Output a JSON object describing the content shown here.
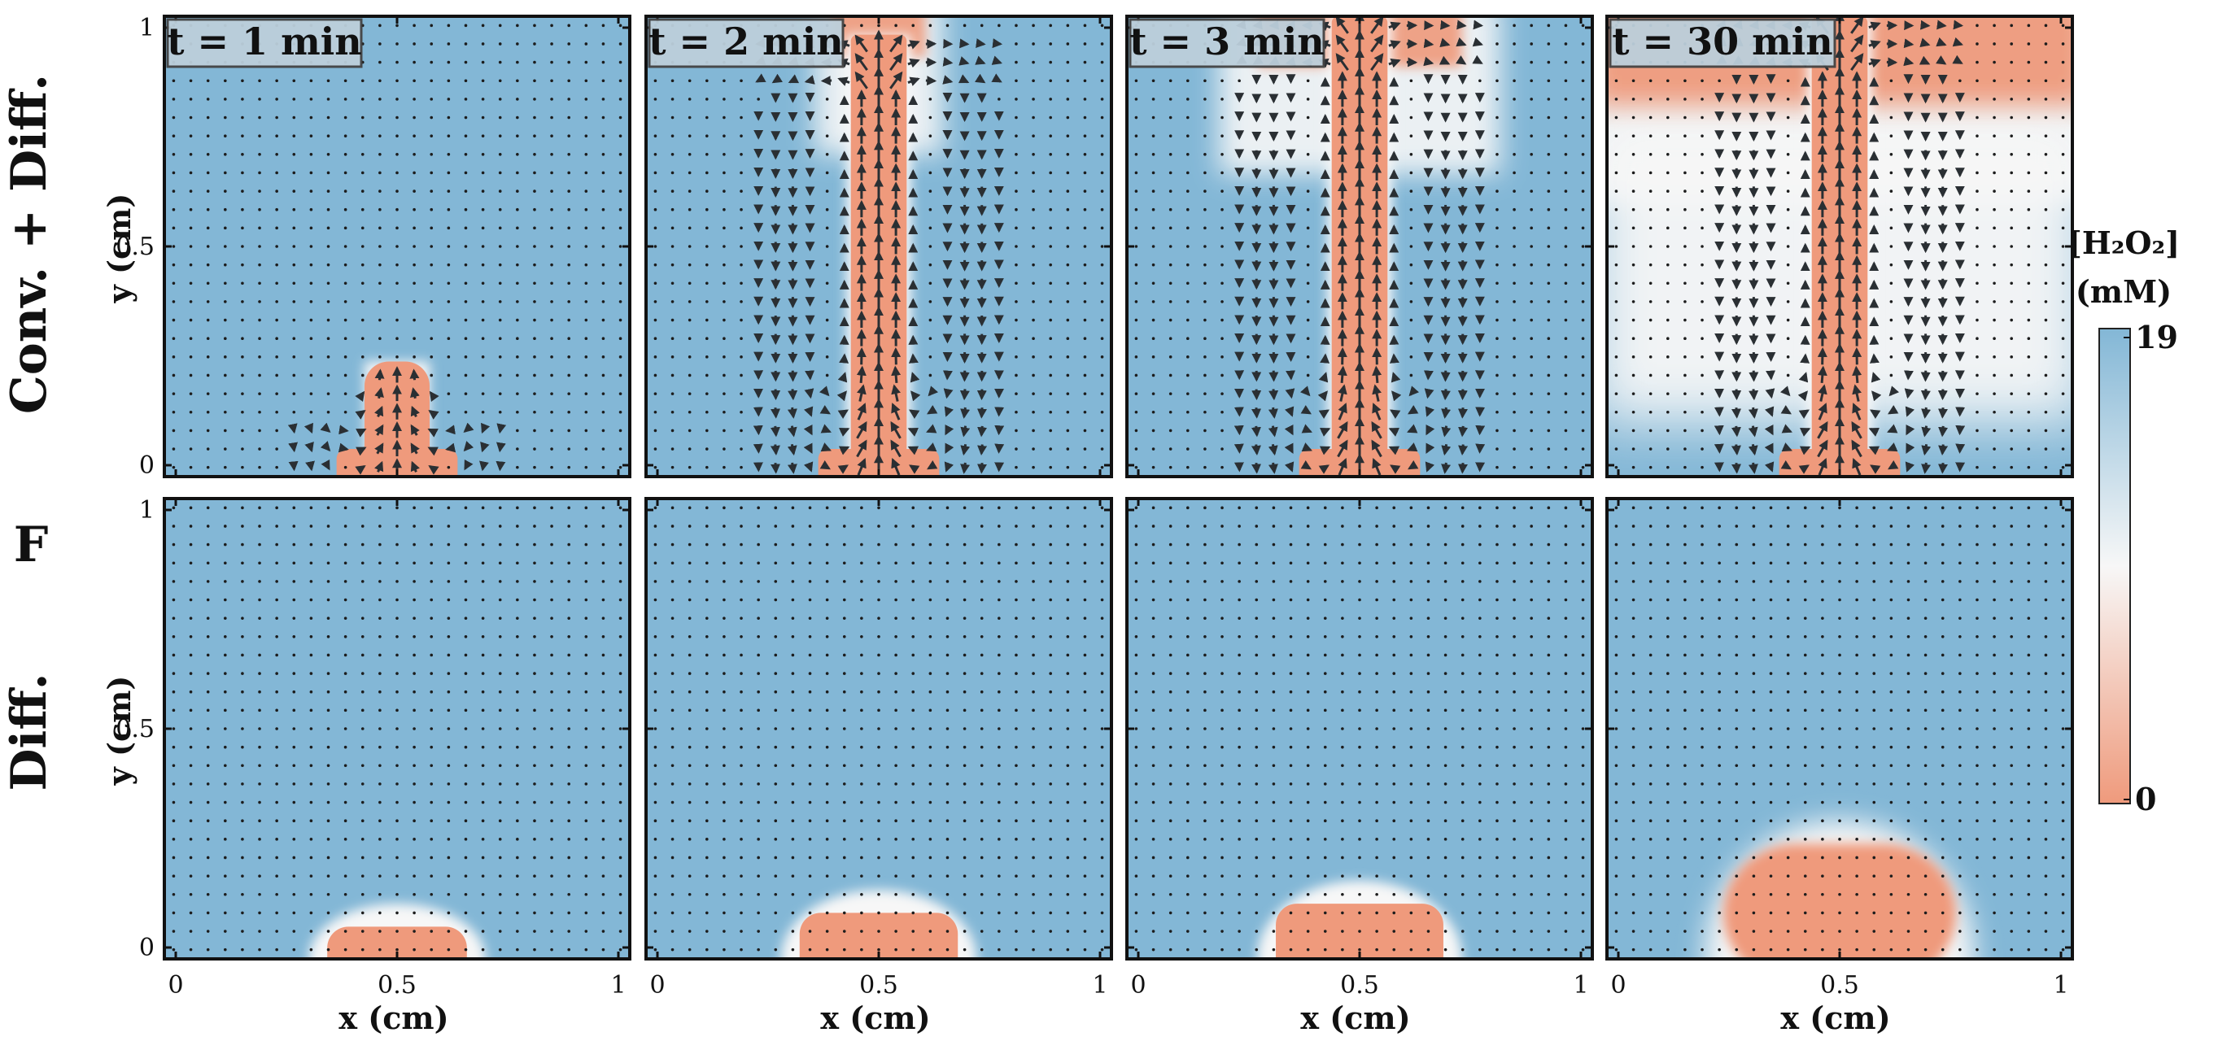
{
  "figure": {
    "panel_letter": "F",
    "row_labels": [
      "Conv. + Diff.",
      "Diff."
    ],
    "colorbar": {
      "label_line1": "[H₂O₂]",
      "label_line2": "(mM)",
      "max_label": "19",
      "min_label": "0"
    }
  },
  "chart_data": {
    "type": "heatmap",
    "quantity": "[H₂O₂] (mM)",
    "color_range": [
      0,
      19
    ],
    "colors": {
      "low": "#ef9a7c",
      "mid": "#f7f7f7",
      "high": "#83b7d6"
    },
    "xlabel": "x (cm)",
    "ylabel": "y (cm)",
    "xlim": [
      0,
      1
    ],
    "ylim": [
      0,
      1
    ],
    "xticks": [
      "0",
      "0.5",
      "1"
    ],
    "yticks": [
      "0",
      "0.5",
      "1"
    ],
    "times": [
      "t = 1 min",
      "t = 2 min",
      "t = 3 min",
      "t = 30 min"
    ],
    "rows": [
      {
        "label": "Conv. + Diff.",
        "velocity_arrows": true,
        "panels": [
          {
            "time": "t = 1 min",
            "plume_height": 0.25,
            "top_spread": 0.0
          },
          {
            "time": "t = 2 min",
            "plume_height": 0.96,
            "top_spread": 0.25
          },
          {
            "time": "t = 3 min",
            "plume_height": 1.0,
            "top_spread": 0.55
          },
          {
            "time": "t = 30 min",
            "plume_height": 1.0,
            "top_spread": 1.0
          }
        ]
      },
      {
        "label": "Diff.",
        "velocity_arrows": false,
        "panels": [
          {
            "time": "t = 1 min",
            "depletion_height": 0.07,
            "depletion_half_width": 0.15
          },
          {
            "time": "t = 2 min",
            "depletion_height": 0.1,
            "depletion_half_width": 0.17
          },
          {
            "time": "t = 3 min",
            "depletion_height": 0.12,
            "depletion_half_width": 0.18
          },
          {
            "time": "t = 30 min",
            "depletion_height": 0.25,
            "depletion_half_width": 0.25
          }
        ]
      }
    ]
  }
}
